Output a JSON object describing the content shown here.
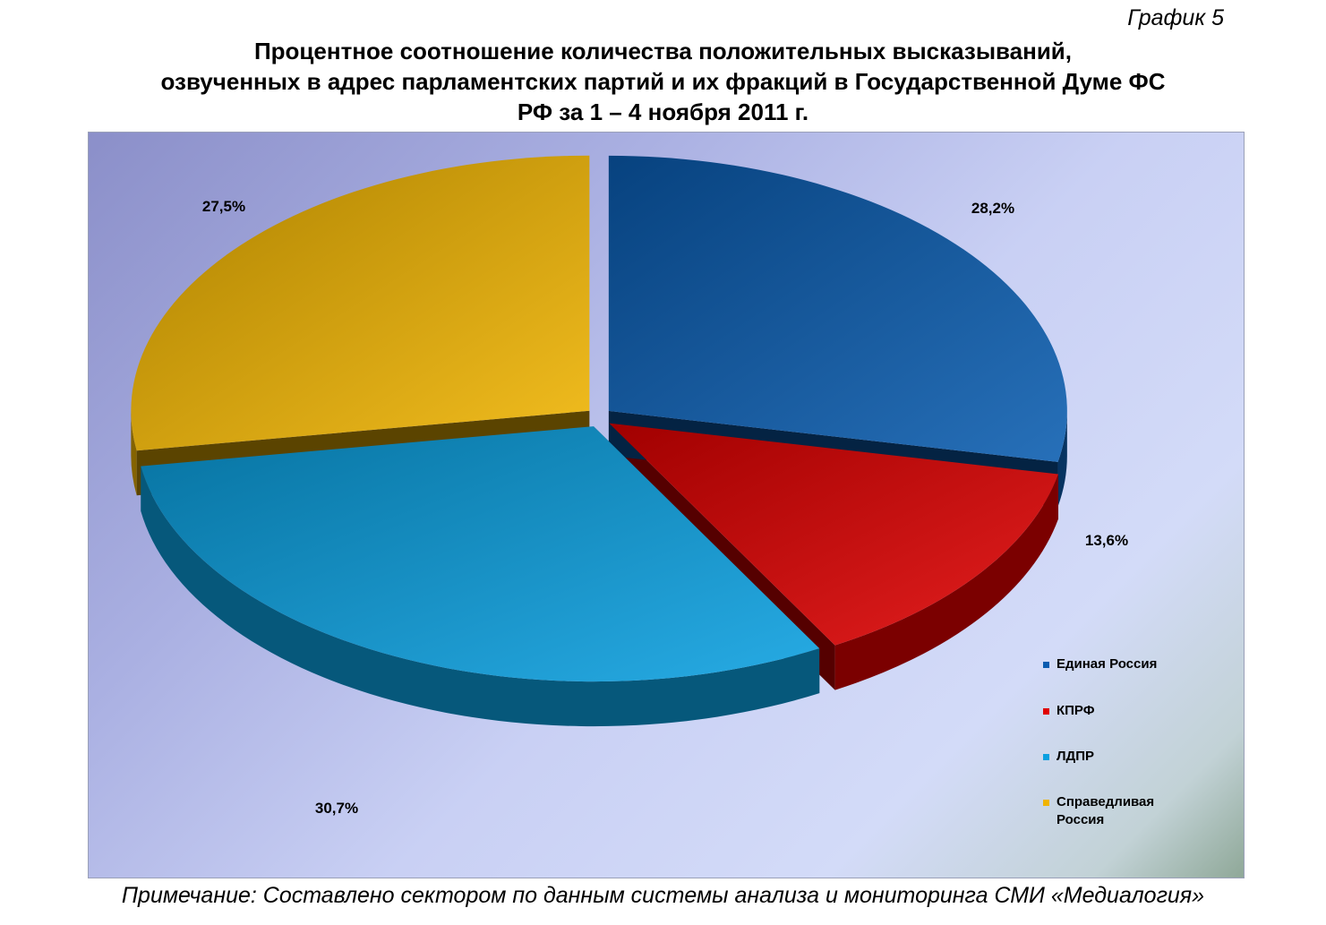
{
  "header": {
    "chart_number": "График 5",
    "title_lines": [
      "Процентное соотношение количества положительных высказываний,",
      "озвученных в адрес парламентских партий и их фракций в Государственной Думе ФС",
      "РФ за 1 – 4 ноября 2011 г."
    ]
  },
  "chart_data": {
    "type": "pie",
    "title": "Процентное соотношение количества положительных высказываний, озвученных в адрес парламентских партий и их фракций в Государственной Думе ФС РФ за 1 – 4 ноября 2011 г.",
    "series": [
      {
        "name": "Единая Россия",
        "value": 28.2,
        "label": "28,2%",
        "color": "#0a5cb0"
      },
      {
        "name": "КПРФ",
        "value": 13.6,
        "label": "13,6%",
        "color": "#e00000"
      },
      {
        "name": "ЛДПР",
        "value": 30.7,
        "label": "30,7%",
        "color": "#0aa0e0"
      },
      {
        "name": "Справедливая Россия",
        "value": 27.5,
        "label": "27,5%",
        "color": "#f0b400"
      }
    ],
    "legend": {
      "placement": "right",
      "entries": [
        {
          "lines": [
            "Единая Россия"
          ],
          "color": "#0a5cb0"
        },
        {
          "lines": [
            "КПРФ"
          ],
          "color": "#e00000"
        },
        {
          "lines": [
            "ЛДПР"
          ],
          "color": "#0aa0e0"
        },
        {
          "lines": [
            "Справедливая",
            "Россия"
          ],
          "color": "#f0b400"
        }
      ]
    },
    "style": "3d-exploded"
  },
  "footer": {
    "note": "Примечание: Составлено сектором по данным системы анализа и мониторинга СМИ «Медиалогия»"
  }
}
